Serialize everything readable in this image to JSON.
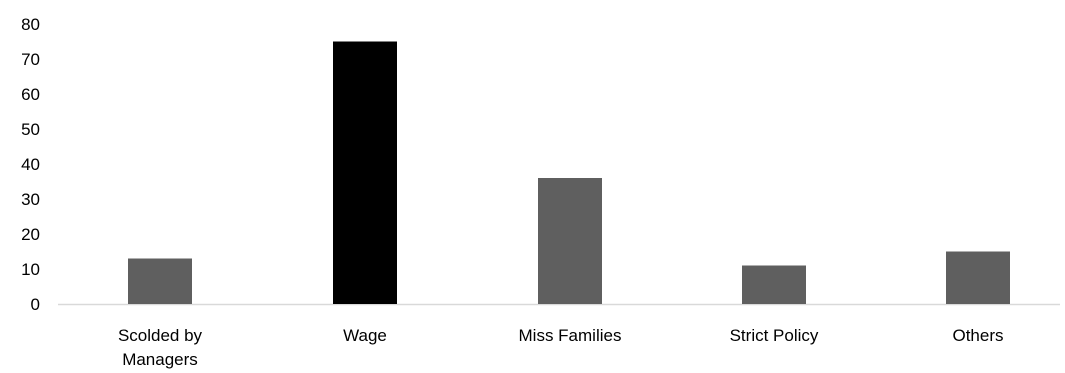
{
  "chart_data": {
    "type": "bar",
    "title": "",
    "xlabel": "",
    "ylabel": "",
    "categories": [
      [
        "Scolded by",
        "Managers"
      ],
      [
        "Wage"
      ],
      [
        "Miss Families"
      ],
      [
        "Strict Policy"
      ],
      [
        "Others"
      ]
    ],
    "values": [
      13,
      75,
      36,
      11,
      15
    ],
    "ylim": [
      0,
      80
    ],
    "yticks": [
      0,
      10,
      20,
      30,
      40,
      50,
      60,
      70,
      80
    ],
    "grid": false,
    "legend": "none",
    "colors": {
      "default_bar": "#5f5f5f",
      "highlight_bar": "#000000",
      "axis": "#d9d9d9"
    },
    "highlight_index": 1
  }
}
